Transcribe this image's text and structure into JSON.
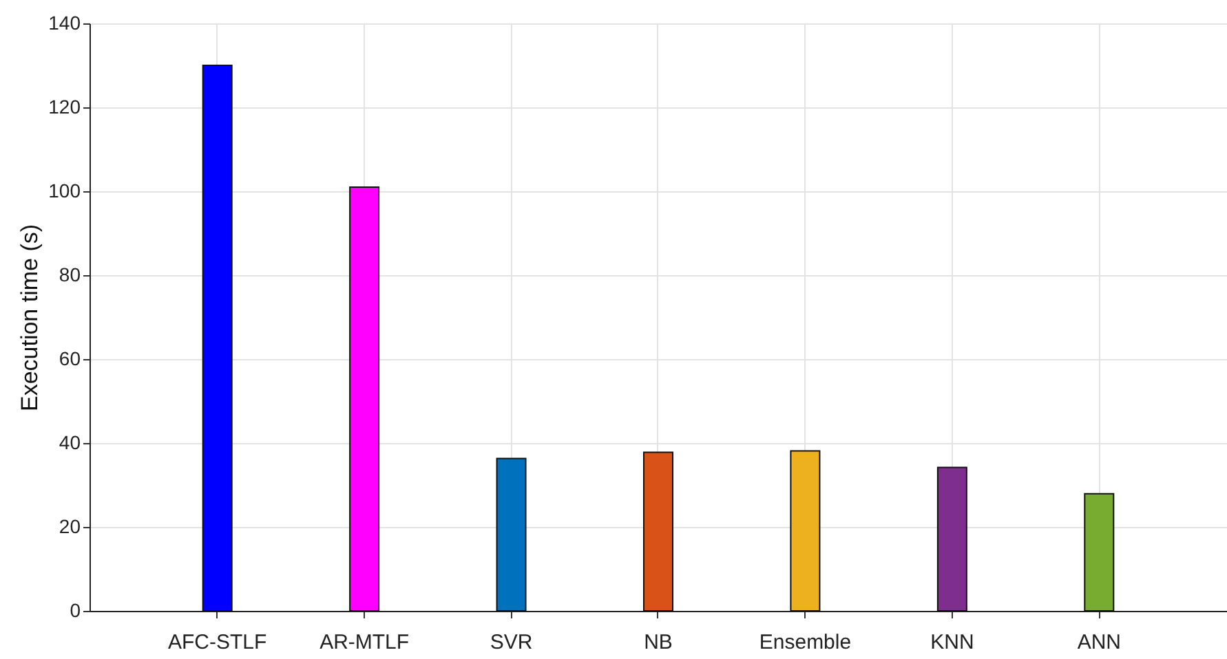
{
  "chart_data": {
    "type": "bar",
    "ylabel": "Execution time (s)",
    "categories": [
      "AFC-STLF",
      "AR-MTLF",
      "SVR",
      "NB",
      "Ensemble",
      "KNN",
      "ANN"
    ],
    "values": [
      130,
      101,
      36.3,
      37.8,
      38.1,
      34.2,
      27.9
    ],
    "colors": [
      "#0000ff",
      "#ff00ff",
      "#0072bd",
      "#d95319",
      "#edb120",
      "#7e2f8e",
      "#77ac30"
    ],
    "ylim": [
      0,
      140
    ],
    "yticks": [
      0,
      20,
      40,
      60,
      80,
      100,
      120,
      140
    ],
    "grid": true
  }
}
